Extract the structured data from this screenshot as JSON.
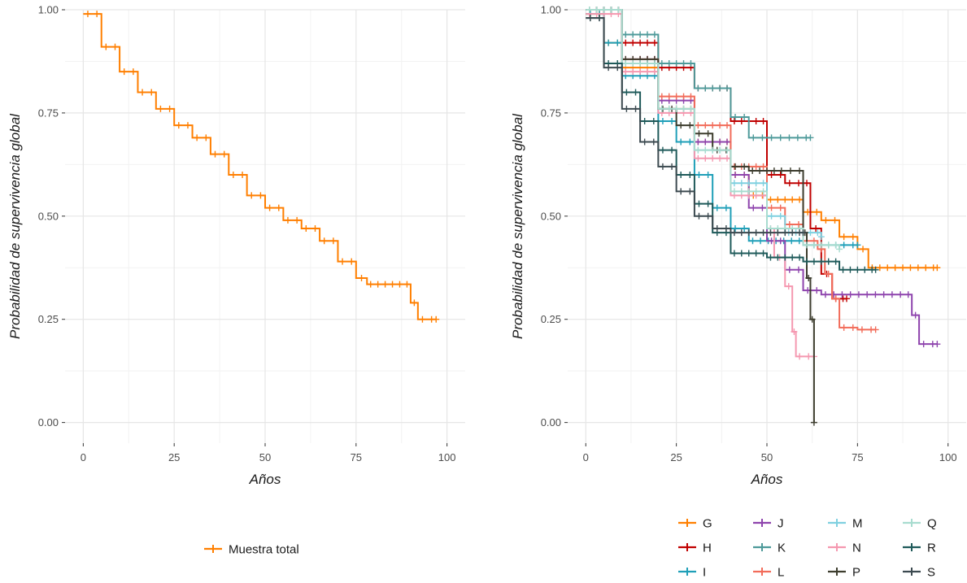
{
  "chart_data": [
    {
      "type": "line",
      "step": true,
      "xlabel": "Años",
      "ylabel": "Probabilidad de supervivencia global",
      "xlim": [
        -5,
        105
      ],
      "ylim": [
        -0.05,
        1.0
      ],
      "xticks": [
        0,
        25,
        50,
        75,
        100
      ],
      "yticks": [
        0.0,
        0.25,
        0.5,
        0.75,
        1.0
      ],
      "x_tick_labels": [
        "0",
        "25",
        "50",
        "75",
        "100"
      ],
      "y_tick_labels": [
        "0.00",
        "0.25",
        "0.50",
        "0.75",
        "1.00"
      ],
      "grid": true,
      "legend_position": "bottom",
      "series": [
        {
          "name": "Muestra total",
          "color": "#FF7F00",
          "x": [
            0,
            5,
            10,
            15,
            20,
            25,
            30,
            35,
            40,
            45,
            50,
            55,
            60,
            65,
            70,
            75,
            78,
            88,
            90,
            92,
            97
          ],
          "y": [
            0.99,
            0.91,
            0.85,
            0.8,
            0.76,
            0.72,
            0.69,
            0.65,
            0.6,
            0.55,
            0.52,
            0.49,
            0.47,
            0.44,
            0.39,
            0.35,
            0.335,
            0.335,
            0.29,
            0.25,
            0.25
          ]
        }
      ]
    },
    {
      "type": "line",
      "step": true,
      "xlabel": "Años",
      "ylabel": "Probabilidad de supervivencia global",
      "xlim": [
        -5,
        105
      ],
      "ylim": [
        -0.05,
        1.0
      ],
      "xticks": [
        0,
        25,
        50,
        75,
        100
      ],
      "yticks": [
        0.0,
        0.25,
        0.5,
        0.75,
        1.0
      ],
      "x_tick_labels": [
        "0",
        "25",
        "50",
        "75",
        "100"
      ],
      "y_tick_labels": [
        "0.00",
        "0.25",
        "0.50",
        "0.75",
        "1.00"
      ],
      "grid": true,
      "legend_position": "bottom",
      "series": [
        {
          "name": "G",
          "color": "#FF7F00",
          "x": [
            0,
            5,
            10,
            20,
            30,
            40,
            45,
            50,
            60,
            65,
            70,
            75,
            78,
            97
          ],
          "y": [
            0.99,
            0.92,
            0.86,
            0.76,
            0.68,
            0.6,
            0.55,
            0.54,
            0.51,
            0.49,
            0.45,
            0.42,
            0.375,
            0.375
          ]
        },
        {
          "name": "H",
          "color": "#C00000",
          "x": [
            0,
            10,
            20,
            30,
            40,
            50,
            55,
            60,
            62,
            65,
            68,
            72
          ],
          "y": [
            1.0,
            0.92,
            0.86,
            0.81,
            0.73,
            0.6,
            0.58,
            0.58,
            0.47,
            0.36,
            0.3,
            0.3
          ]
        },
        {
          "name": "I",
          "color": "#1F9FB8",
          "x": [
            0,
            5,
            10,
            20,
            25,
            30,
            35,
            40,
            45,
            60,
            70,
            75
          ],
          "y": [
            0.99,
            0.92,
            0.84,
            0.73,
            0.68,
            0.6,
            0.52,
            0.47,
            0.44,
            0.43,
            0.43,
            0.43
          ]
        },
        {
          "name": "J",
          "color": "#8E44AD",
          "x": [
            0,
            10,
            20,
            30,
            40,
            45,
            50,
            55,
            60,
            65,
            88,
            90,
            92,
            97
          ],
          "y": [
            1.0,
            0.88,
            0.78,
            0.68,
            0.6,
            0.52,
            0.44,
            0.37,
            0.32,
            0.31,
            0.31,
            0.26,
            0.19,
            0.19
          ]
        },
        {
          "name": "K",
          "color": "#4E9A9A",
          "x": [
            0,
            10,
            20,
            30,
            40,
            45,
            50,
            55,
            62
          ],
          "y": [
            1.0,
            0.94,
            0.87,
            0.81,
            0.74,
            0.69,
            0.69,
            0.69,
            0.69
          ]
        },
        {
          "name": "L",
          "color": "#F26C5A",
          "x": [
            0,
            10,
            20,
            30,
            40,
            50,
            55,
            60,
            64,
            66,
            68,
            70,
            75,
            80
          ],
          "y": [
            1.0,
            0.88,
            0.79,
            0.72,
            0.62,
            0.52,
            0.48,
            0.44,
            0.42,
            0.36,
            0.3,
            0.23,
            0.225,
            0.225
          ]
        },
        {
          "name": "M",
          "color": "#7FD0E0",
          "x": [
            0,
            10,
            20,
            30,
            40,
            50,
            55,
            65
          ],
          "y": [
            1.0,
            0.87,
            0.76,
            0.66,
            0.58,
            0.5,
            0.46,
            0.45
          ]
        },
        {
          "name": "N",
          "color": "#F598B0",
          "x": [
            0,
            10,
            20,
            30,
            40,
            50,
            52,
            55,
            57,
            58,
            60,
            63
          ],
          "y": [
            0.99,
            0.85,
            0.75,
            0.64,
            0.55,
            0.47,
            0.4,
            0.33,
            0.22,
            0.16,
            0.16,
            0.16
          ]
        },
        {
          "name": "P",
          "color": "#3D3D2E",
          "x": [
            0,
            10,
            20,
            25,
            30,
            35,
            40,
            45,
            55,
            58,
            60,
            61,
            62,
            63
          ],
          "y": [
            1.0,
            0.88,
            0.76,
            0.72,
            0.7,
            0.66,
            0.62,
            0.61,
            0.61,
            0.61,
            0.46,
            0.35,
            0.25,
            0.0
          ]
        },
        {
          "name": "Q",
          "color": "#A8DCCF",
          "x": [
            0,
            10,
            20,
            30,
            40,
            50,
            60,
            70
          ],
          "y": [
            1.0,
            0.87,
            0.76,
            0.66,
            0.56,
            0.47,
            0.43,
            0.42
          ]
        },
        {
          "name": "R",
          "color": "#1F5A5A",
          "x": [
            0,
            5,
            10,
            15,
            20,
            25,
            30,
            35,
            40,
            50,
            60,
            70,
            80
          ],
          "y": [
            0.98,
            0.87,
            0.8,
            0.73,
            0.66,
            0.6,
            0.53,
            0.46,
            0.41,
            0.4,
            0.39,
            0.37,
            0.37
          ]
        },
        {
          "name": "S",
          "color": "#3C4A50",
          "x": [
            0,
            5,
            10,
            15,
            20,
            25,
            30,
            35,
            40,
            50,
            60
          ],
          "y": [
            0.98,
            0.86,
            0.76,
            0.68,
            0.62,
            0.56,
            0.5,
            0.47,
            0.46,
            0.46,
            0.46
          ]
        }
      ]
    }
  ]
}
